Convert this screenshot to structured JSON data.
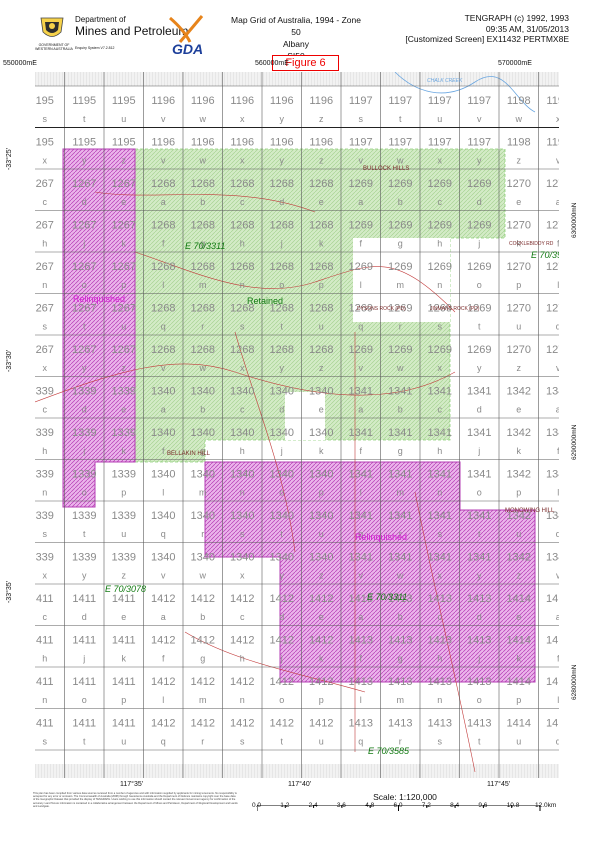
{
  "header": {
    "dept_line1": "Department of",
    "dept_line2": "Mines and Petroleum",
    "gov_text": "GOVERNMENT OF WESTERN AUSTRALIA",
    "enquiry": "Enquiry System V7.2.812",
    "map_title": "Map Grid of Australia, 1994 - Zone 50",
    "sheet_name": "Albany",
    "sheet_code": "SI50",
    "product": "TENGRAPH (c) 1992, 1993",
    "timestamp": "09:35 AM, 31/05/2013",
    "screen_info": "[Customized Screen] EX11432 PERTMX8E",
    "gda_label": "GDA",
    "figure_label": "Figure 6"
  },
  "top_coords": [
    "550000mE",
    "560000mE",
    "570000mE"
  ],
  "left_lats": [
    "-33°25'",
    "-33°30'",
    "-33°35'"
  ],
  "right_northings": [
    "6300000mN",
    "6290000mN",
    "6280000mN"
  ],
  "bottom_lons": [
    "117°35'",
    "117°40'",
    "117°45'"
  ],
  "grid": {
    "row_labels": [
      {
        "num": [
          "195",
          "1195",
          "1195",
          "1196",
          "1196",
          "1196",
          "1196",
          "1196",
          "1197",
          "1197",
          "1197",
          "1197",
          "1198",
          "1198"
        ],
        "letters": [
          "s",
          "t",
          "u",
          "v",
          "w",
          "x",
          "y",
          "z",
          "s",
          "t",
          "u",
          "v",
          "w",
          "x"
        ]
      },
      {
        "num": [
          "195",
          "1195",
          "1195",
          "1196",
          "1196",
          "1196",
          "1196",
          "1196",
          "1197",
          "1197",
          "1197",
          "1197",
          "1198",
          "1198"
        ],
        "letters": [
          "x",
          "y",
          "z",
          "v",
          "w",
          "x",
          "y",
          "z",
          "v",
          "w",
          "x",
          "y",
          "z",
          "v"
        ]
      },
      {
        "num": [
          "267",
          "1267",
          "1267",
          "1268",
          "1268",
          "1268",
          "1268",
          "1268",
          "1269",
          "1269",
          "1269",
          "1269",
          "1270",
          "1270"
        ],
        "letters": [
          "c",
          "d",
          "e",
          "a",
          "b",
          "c",
          "d",
          "e",
          "a",
          "b",
          "c",
          "d",
          "e",
          "a"
        ]
      },
      {
        "num": [
          "267",
          "1267",
          "1267",
          "1268",
          "1268",
          "1268",
          "1268",
          "1268",
          "1269",
          "1269",
          "1269",
          "1269",
          "1270",
          "1270"
        ],
        "letters": [
          "h",
          "j",
          "k",
          "f",
          "g",
          "h",
          "j",
          "k",
          "f",
          "g",
          "h",
          "j",
          "k",
          "f"
        ]
      },
      {
        "num": [
          "267",
          "1267",
          "1267",
          "1268",
          "1268",
          "1268",
          "1268",
          "1268",
          "1269",
          "1269",
          "1269",
          "1269",
          "1270",
          "1270"
        ],
        "letters": [
          "n",
          "o",
          "p",
          "l",
          "m",
          "n",
          "o",
          "p",
          "l",
          "m",
          "n",
          "o",
          "p",
          "l"
        ]
      },
      {
        "num": [
          "267",
          "1267",
          "1267",
          "1268",
          "1268",
          "1268",
          "1268",
          "1268",
          "1269",
          "1269",
          "1269",
          "1269",
          "1270",
          "1270"
        ],
        "letters": [
          "s",
          "t",
          "u",
          "q",
          "r",
          "s",
          "t",
          "u",
          "q",
          "r",
          "s",
          "t",
          "u",
          "q"
        ]
      },
      {
        "num": [
          "267",
          "1267",
          "1267",
          "1268",
          "1268",
          "1268",
          "1268",
          "1268",
          "1269",
          "1269",
          "1269",
          "1269",
          "1270",
          "1270"
        ],
        "letters": [
          "x",
          "y",
          "z",
          "v",
          "w",
          "x",
          "y",
          "z",
          "v",
          "w",
          "x",
          "y",
          "z",
          "v"
        ]
      },
      {
        "num": [
          "339",
          "1339",
          "1339",
          "1340",
          "1340",
          "1340",
          "1340",
          "1340",
          "1341",
          "1341",
          "1341",
          "1341",
          "1342",
          "1342"
        ],
        "letters": [
          "c",
          "d",
          "e",
          "a",
          "b",
          "c",
          "d",
          "e",
          "a",
          "b",
          "c",
          "d",
          "e",
          "a"
        ]
      },
      {
        "num": [
          "339",
          "1339",
          "1339",
          "1340",
          "1340",
          "1340",
          "1340",
          "1340",
          "1341",
          "1341",
          "1341",
          "1341",
          "1342",
          "1342"
        ],
        "letters": [
          "h",
          "j",
          "k",
          "f",
          "g",
          "h",
          "j",
          "k",
          "f",
          "g",
          "h",
          "j",
          "k",
          "f"
        ]
      },
      {
        "num": [
          "339",
          "1339",
          "1339",
          "1340",
          "1340",
          "1340",
          "1340",
          "1340",
          "1341",
          "1341",
          "1341",
          "1341",
          "1342",
          "1342"
        ],
        "letters": [
          "n",
          "o",
          "p",
          "l",
          "m",
          "n",
          "o",
          "p",
          "l",
          "m",
          "n",
          "o",
          "p",
          "l"
        ]
      },
      {
        "num": [
          "339",
          "1339",
          "1339",
          "1340",
          "1340",
          "1340",
          "1340",
          "1340",
          "1341",
          "1341",
          "1341",
          "1341",
          "1342",
          "1342"
        ],
        "letters": [
          "s",
          "t",
          "u",
          "q",
          "r",
          "s",
          "t",
          "u",
          "q",
          "r",
          "s",
          "t",
          "u",
          "q"
        ]
      },
      {
        "num": [
          "339",
          "1339",
          "1339",
          "1340",
          "1340",
          "1340",
          "1340",
          "1340",
          "1341",
          "1341",
          "1341",
          "1341",
          "1342",
          "1342"
        ],
        "letters": [
          "x",
          "y",
          "z",
          "v",
          "w",
          "x",
          "y",
          "z",
          "v",
          "w",
          "x",
          "y",
          "z",
          "v"
        ]
      },
      {
        "num": [
          "411",
          "1411",
          "1411",
          "1412",
          "1412",
          "1412",
          "1412",
          "1412",
          "1413",
          "1413",
          "1413",
          "1413",
          "1414",
          "1414"
        ],
        "letters": [
          "c",
          "d",
          "e",
          "a",
          "b",
          "c",
          "d",
          "e",
          "a",
          "b",
          "c",
          "d",
          "e",
          "a"
        ]
      },
      {
        "num": [
          "411",
          "1411",
          "1411",
          "1412",
          "1412",
          "1412",
          "1412",
          "1412",
          "1413",
          "1413",
          "1413",
          "1413",
          "1414",
          "1414"
        ],
        "letters": [
          "h",
          "j",
          "k",
          "f",
          "g",
          "h",
          "j",
          "k",
          "f",
          "g",
          "h",
          "j",
          "k",
          "f"
        ]
      },
      {
        "num": [
          "411",
          "1411",
          "1411",
          "1412",
          "1412",
          "1412",
          "1412",
          "1412",
          "1413",
          "1413",
          "1413",
          "1413",
          "1414",
          "1414"
        ],
        "letters": [
          "n",
          "o",
          "p",
          "l",
          "m",
          "n",
          "o",
          "p",
          "l",
          "m",
          "n",
          "o",
          "p",
          "l"
        ]
      },
      {
        "num": [
          "411",
          "1411",
          "1411",
          "1412",
          "1412",
          "1412",
          "1412",
          "1412",
          "1413",
          "1413",
          "1413",
          "1413",
          "1414",
          "1414"
        ],
        "letters": [
          "s",
          "t",
          "u",
          "q",
          "r",
          "s",
          "t",
          "u",
          "q",
          "r",
          "s",
          "t",
          "u",
          "q"
        ]
      }
    ]
  },
  "labels": {
    "bullock_hills": "BULLOCK HILLS",
    "e70_3311_a": "E 70/3311",
    "e70_395": "E 70/395",
    "cocklebiddy": "COCKLEBIDDY RD",
    "relinquished_a": "Relinquished",
    "retained": "Retained",
    "dysons": "DYSONS ROCK (PD)",
    "jinmans": "JINMANS ROCK (PD)",
    "bellakin": "BELLAKIN HILL",
    "monowing": "MONOWING HILL",
    "relinquished_b": "Relinquished",
    "e70_3311_b": "E 70/3311",
    "e70_3078": "E 70/3078",
    "e70_3585": "E 70/3585",
    "chalk_creek": "CHALK CREEK"
  },
  "scale": {
    "label": "Scale: 1:120,000",
    "ticks": [
      "0.0",
      "1.2",
      "2.4",
      "3.6",
      "4.8",
      "6.0",
      "7.2",
      "8.4",
      "9.6",
      "10.8",
      "12.0km"
    ]
  },
  "disclaimer": "This plan has been compiled from various data sources received from a number of agencies and with information supplied by applicants for mining tenements. No responsibility is accepted for any error or omission. The Commonwealth of Australia (2008) through Geoscience Australia and the Department of Defence maintains copyright over the base data of the Geographic Dataset that provided the display of TENGRAPH. Users wishing to use this information should contact the relevant Government agency for confirmation of the accuracy. Land Tenure information is contained in a collaborative arrangement between the Department of Mines and Petroleum, Department of Regional Development and Lands and Landgate.",
  "colors": {
    "retained_fill": "#cfe8c0",
    "relinquished_fill": "#e7a9e7",
    "relinquished_stroke": "#b43cb4",
    "label_green": "#127a12",
    "label_magenta": "#d21ad2",
    "road_red": "#c23b3b",
    "river_blue": "#6aa6e0"
  }
}
